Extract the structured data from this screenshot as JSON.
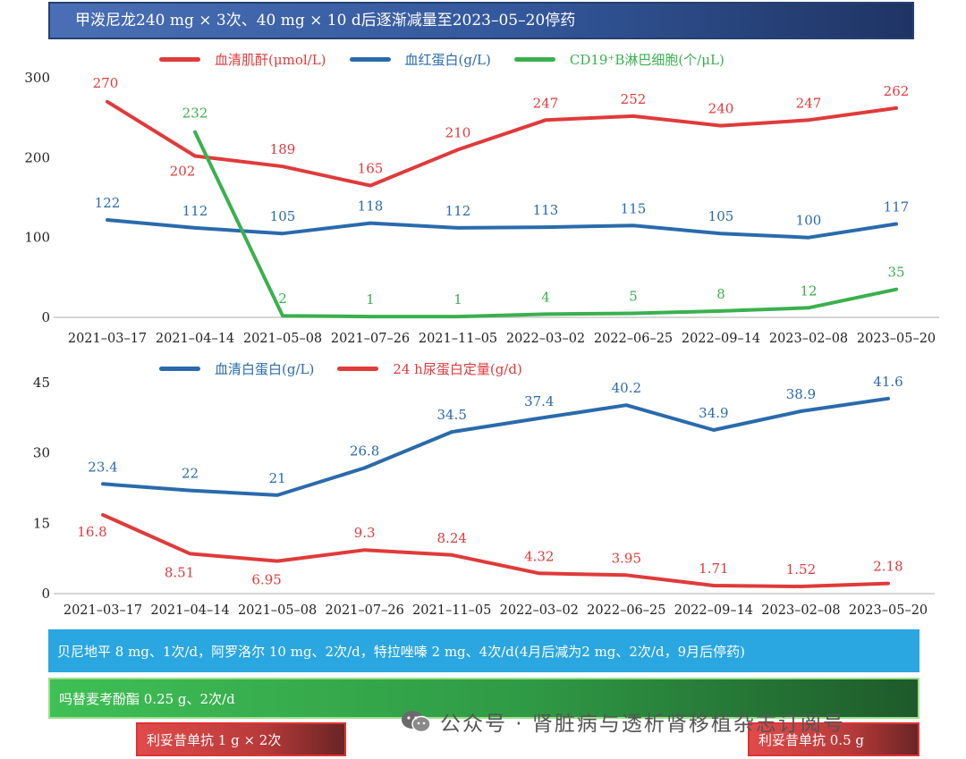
{
  "banner": {
    "text": "甲泼尼龙240 mg × 3次、40 mg × 10 d后逐渐减量至2023–05–20停药"
  },
  "chart_data": [
    {
      "type": "line",
      "categories": [
        "2021–03–17",
        "2021–04–14",
        "2021–05–08",
        "2021–07–26",
        "2021–11–05",
        "2022–03–02",
        "2022–06–25",
        "2022–09–14",
        "2023–02–08",
        "2023–05–20"
      ],
      "ylim": [
        0,
        300
      ],
      "yticks": [
        "0",
        "100",
        "200",
        "300"
      ],
      "series": [
        {
          "name": "血清肌酐(μmol/L)",
          "color": "#e03a3a",
          "values": [
            270,
            202,
            189,
            165,
            210,
            247,
            252,
            240,
            247,
            262
          ],
          "labels": [
            "270",
            "202",
            "189",
            "165",
            "210",
            "247",
            "252",
            "240",
            "247",
            "262"
          ]
        },
        {
          "name": "血红蛋白(g/L)",
          "color": "#2a6aac",
          "values": [
            122,
            112,
            105,
            118,
            112,
            113,
            115,
            105,
            100,
            117
          ],
          "labels": [
            "122",
            "112",
            "105",
            "118",
            "112",
            "113",
            "115",
            "105",
            "100",
            "117"
          ]
        },
        {
          "name": "CD19⁺B淋巴细胞(个/μL)",
          "color": "#3ab04e",
          "values": [
            null,
            232,
            2,
            1,
            1,
            4,
            5,
            8,
            12,
            35
          ],
          "labels": [
            "",
            "232",
            "2",
            "1",
            "1",
            "4",
            "5",
            "8",
            "12",
            "35"
          ]
        }
      ]
    },
    {
      "type": "line",
      "categories": [
        "2021–03–17",
        "2021–04–14",
        "2021–05–08",
        "2021–07–26",
        "2021–11–05",
        "2022–03–02",
        "2022–06–25",
        "2022–09–14",
        "2023–02–08",
        "2023–05–20"
      ],
      "ylim": [
        0,
        45
      ],
      "yticks": [
        "0",
        "15",
        "30",
        "45"
      ],
      "series": [
        {
          "name": "血清白蛋白(g/L)",
          "color": "#2a6aac",
          "values": [
            23.4,
            22,
            21,
            26.8,
            34.5,
            37.4,
            40.2,
            34.9,
            38.9,
            41.6
          ],
          "labels": [
            "23.4",
            "22",
            "21",
            "26.8",
            "34.5",
            "37.4",
            "40.2",
            "34.9",
            "38.9",
            "41.6"
          ]
        },
        {
          "name": "24 h尿蛋白定量(g/d)",
          "color": "#e03a3a",
          "values": [
            16.8,
            8.51,
            6.95,
            9.3,
            8.24,
            4.32,
            3.95,
            1.71,
            1.52,
            2.18
          ],
          "labels": [
            "16.8",
            "8.51",
            "6.95",
            "9.3",
            "8.24",
            "4.32",
            "3.95",
            "1.71",
            "1.52",
            "2.18"
          ]
        }
      ]
    }
  ],
  "medications": {
    "bar1": "贝尼地平 8 mg、1次/d，阿罗洛尔 10 mg、2次/d，特拉唑嗪 2 mg、4次/d(4月后减为2 mg、2次/d，9月后停药)",
    "bar2": "吗替麦考酚酯 0.25 g、2次/d",
    "bar3": "利妥昔单抗 1 g × 2次",
    "bar4": "利妥昔单抗 0.5 g"
  },
  "watermark": {
    "text": "公众号 · 肾脏病与透析肾移植杂志订阅号",
    "icon": "wechat-icon"
  }
}
